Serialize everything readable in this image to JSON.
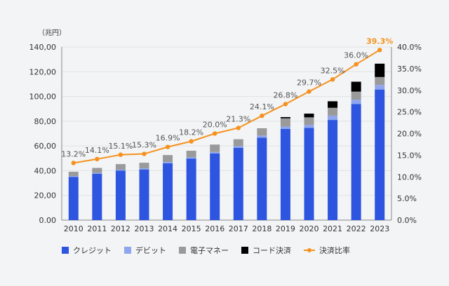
{
  "chart_data": {
    "type": "bar",
    "stacked": true,
    "categories": [
      "2010",
      "2011",
      "2012",
      "2013",
      "2014",
      "2015",
      "2016",
      "2017",
      "2018",
      "2019",
      "2020",
      "2021",
      "2022",
      "2023"
    ],
    "y_unit_label": "（兆円）",
    "ylim": [
      0,
      140
    ],
    "y_ticks": [
      "0.00",
      "20,00",
      "40,00",
      "60,00",
      "80,00",
      "100,00",
      "120,00",
      "140,00"
    ],
    "y2lim": [
      0,
      40
    ],
    "y2_ticks": [
      "0.0%",
      "5.0%",
      "10.0%",
      "15.0%",
      "20.0%",
      "25.0%",
      "30.0%",
      "35.0%",
      "40.0%"
    ],
    "series": [
      {
        "name": "クレジット",
        "color": "#2d55e0",
        "values": [
          35.0,
          37.5,
          40.0,
          41.0,
          46.0,
          49.8,
          53.9,
          58.4,
          66.7,
          73.7,
          74.6,
          81.0,
          93.8,
          105.6
        ]
      },
      {
        "name": "デビット",
        "color": "#8fa6ec",
        "values": [
          0.6,
          0.7,
          0.8,
          0.8,
          1.0,
          1.0,
          1.2,
          1.5,
          1.7,
          2.0,
          2.5,
          3.5,
          3.6,
          3.7
        ]
      },
      {
        "name": "電子マネー",
        "color": "#9a9a9a",
        "values": [
          3.5,
          4.0,
          4.5,
          4.6,
          5.6,
          5.3,
          6.0,
          5.5,
          5.4,
          6.6,
          6.0,
          6.3,
          6.5,
          6.4
        ]
      },
      {
        "name": "コード決済",
        "color": "#000000",
        "values": [
          0,
          0,
          0,
          0,
          0,
          0,
          0,
          0,
          0.2,
          1.0,
          3.0,
          5.3,
          8.0,
          10.8
        ]
      }
    ],
    "line": {
      "name": "決済比率",
      "color": "#f5921e",
      "values": [
        13.2,
        14.1,
        15.1,
        15.3,
        16.9,
        18.2,
        20.0,
        21.3,
        24.1,
        26.8,
        29.7,
        32.5,
        36.0,
        39.3
      ],
      "labels": [
        "13.2%",
        "14.1%",
        "15.1%",
        "15.3%",
        "16.9%",
        "18.2%",
        "20.0%",
        "21.3%",
        "24.1%",
        "26.8%",
        "29.7%",
        "32.5%",
        "36.0%",
        "39.3%"
      ],
      "highlight_color": "#f5921e",
      "label_color": "#555555"
    },
    "legend_position": "bottom"
  }
}
